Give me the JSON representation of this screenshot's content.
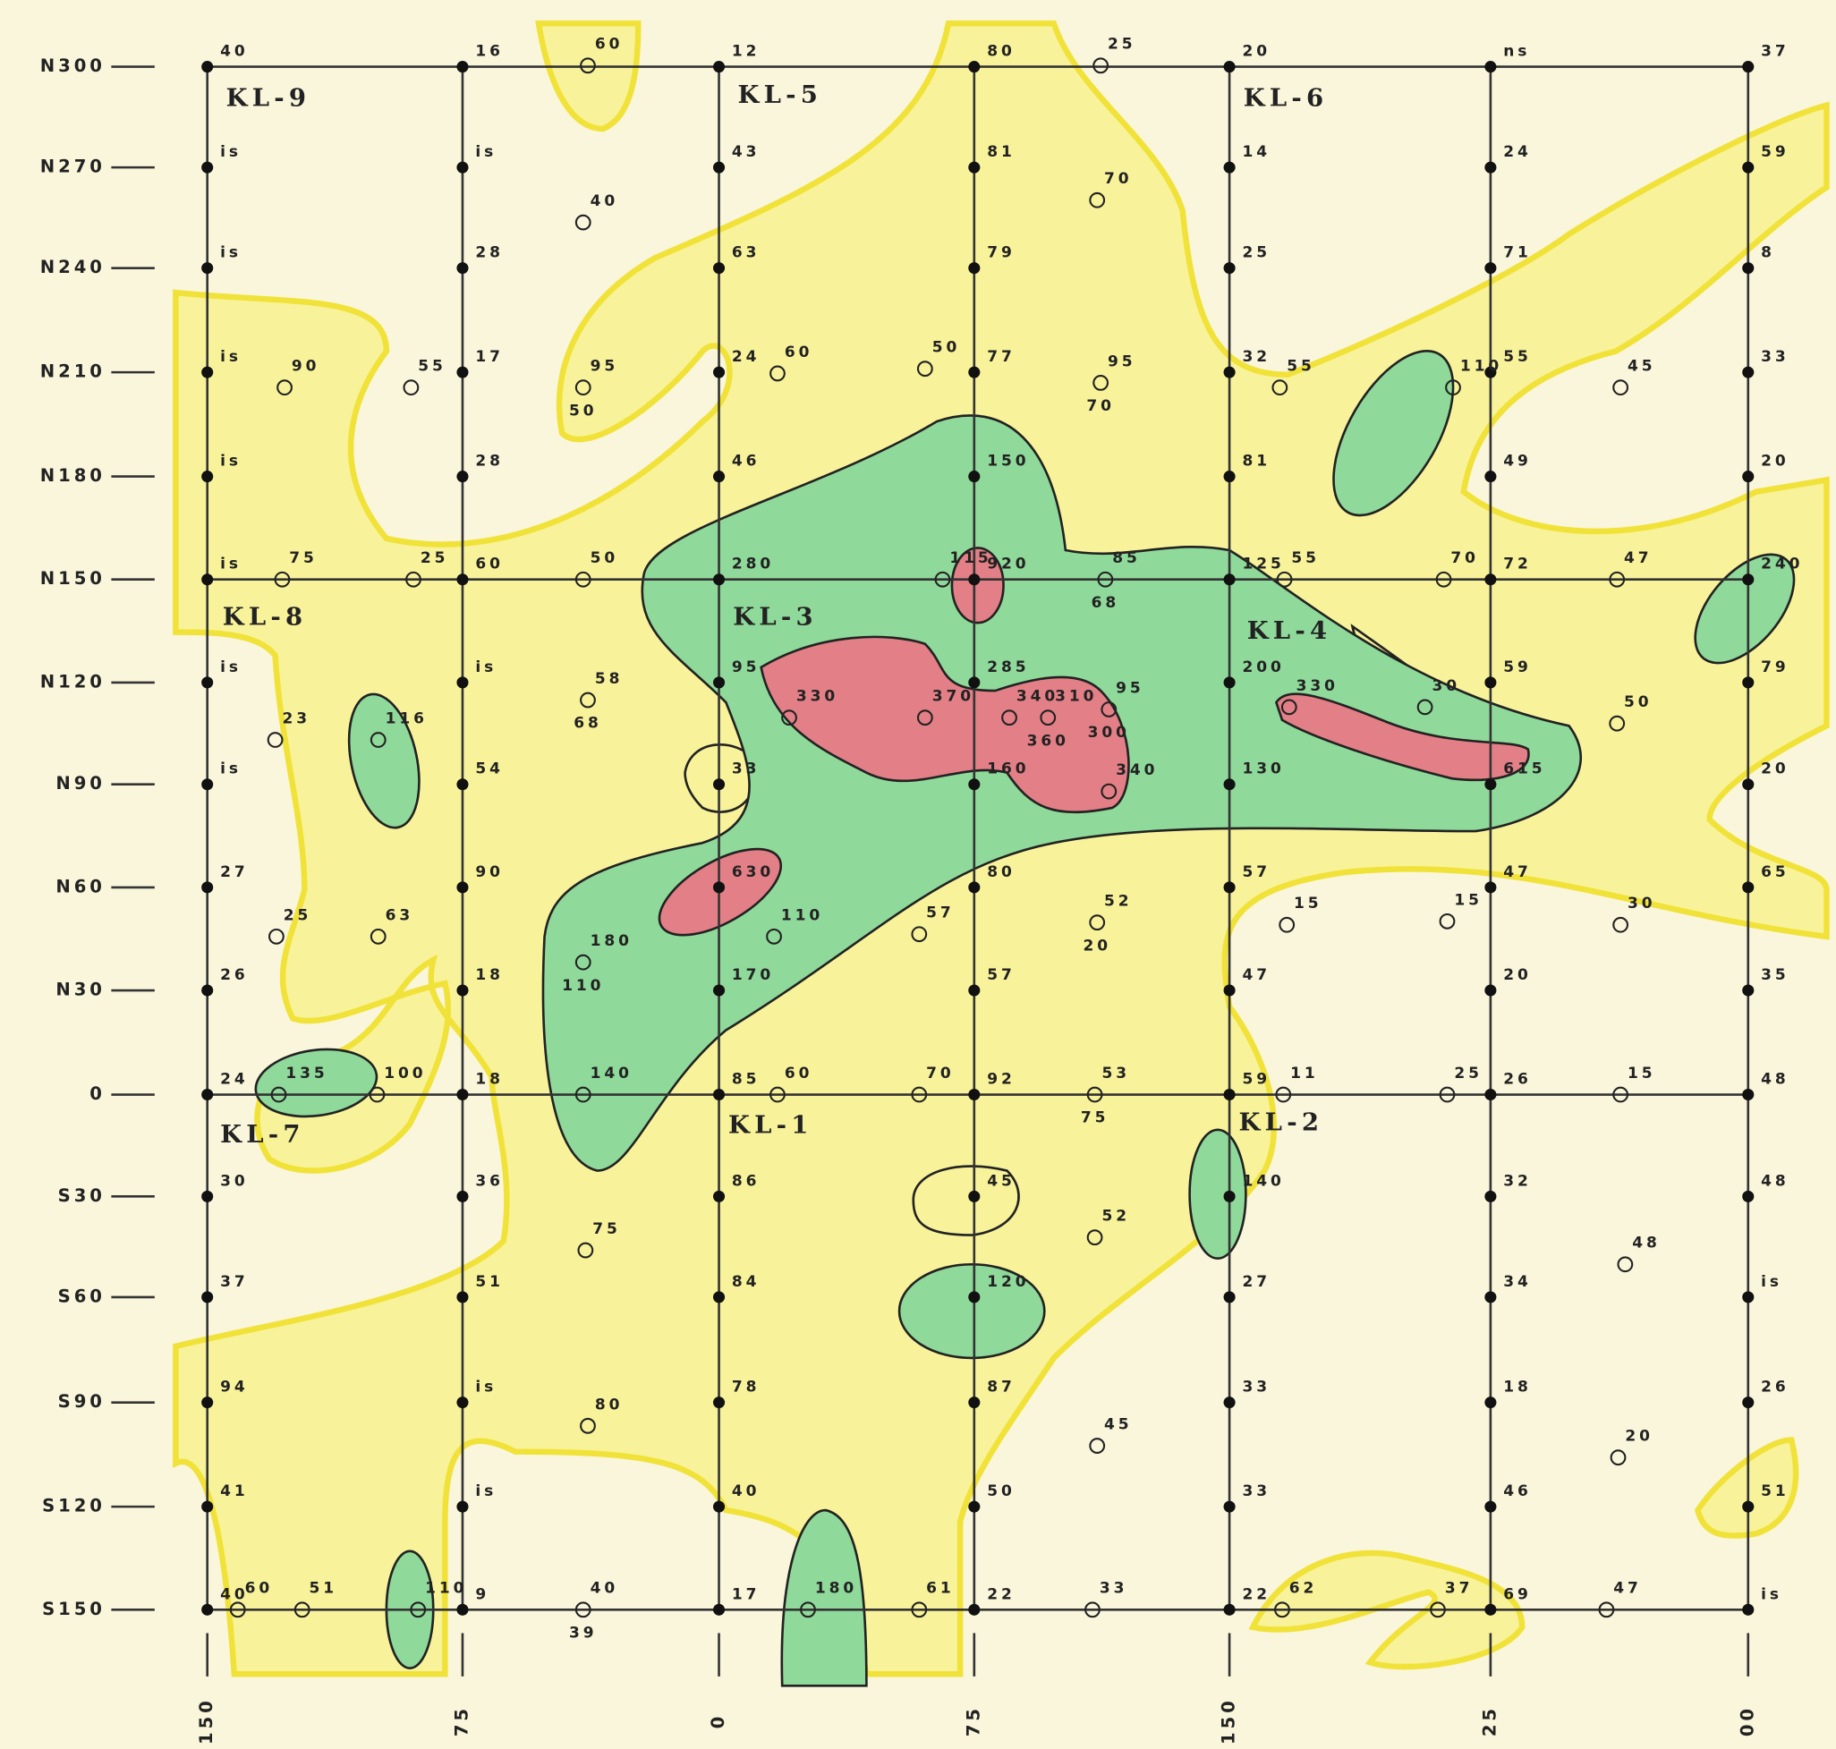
{
  "grid": {
    "rows": [
      {
        "label": "N300",
        "values": [
          40,
          16,
          12,
          80,
          20,
          "ns",
          37
        ]
      },
      {
        "label": "N270",
        "values": [
          "is",
          "is",
          43,
          81,
          14,
          24,
          59
        ]
      },
      {
        "label": "N240",
        "values": [
          "is",
          28,
          63,
          79,
          25,
          71,
          8
        ]
      },
      {
        "label": "N210",
        "values": [
          "is",
          17,
          24,
          77,
          32,
          55,
          33
        ]
      },
      {
        "label": "N180",
        "values": [
          "is",
          28,
          46,
          150,
          81,
          49,
          20
        ]
      },
      {
        "label": "N150",
        "values": [
          "is",
          60,
          280,
          920,
          125,
          72,
          240
        ]
      },
      {
        "label": "N120",
        "values": [
          "is",
          "is",
          95,
          285,
          200,
          59,
          79
        ]
      },
      {
        "label": "N90",
        "values": [
          "is",
          54,
          33,
          160,
          130,
          615,
          20
        ]
      },
      {
        "label": "N60",
        "values": [
          27,
          90,
          630,
          80,
          57,
          47,
          65
        ]
      },
      {
        "label": "N30",
        "values": [
          26,
          18,
          170,
          57,
          47,
          20,
          35
        ]
      },
      {
        "label": "0",
        "values": [
          24,
          18,
          85,
          92,
          59,
          26,
          48
        ]
      },
      {
        "label": "S30",
        "values": [
          30,
          36,
          86,
          45,
          140,
          32,
          48
        ]
      },
      {
        "label": "S60",
        "values": [
          37,
          51,
          84,
          120,
          27,
          34,
          "is"
        ]
      },
      {
        "label": "S90",
        "values": [
          94,
          "is",
          78,
          87,
          33,
          18,
          26
        ]
      },
      {
        "label": "S120",
        "values": [
          41,
          "is",
          40,
          50,
          33,
          46,
          51
        ]
      },
      {
        "label": "S150",
        "values": [
          40,
          9,
          17,
          22,
          22,
          69,
          "is"
        ]
      }
    ],
    "x_labels": [
      "150",
      "75",
      "0",
      "75",
      "150",
      "25",
      "00"
    ]
  },
  "areas": [
    "KL-9",
    "KL-5",
    "KL-6",
    "KL-8",
    "KL-3",
    "KL-4",
    "KL-7",
    "KL-1",
    "KL-2"
  ],
  "samples": [
    [
      60
    ],
    [
      25
    ],
    [
      40
    ],
    [
      70
    ],
    [
      90
    ],
    [
      55
    ],
    [
      95,
      50
    ],
    [
      60
    ],
    [
      50
    ],
    [
      95,
      70
    ],
    [
      55
    ],
    [
      110
    ],
    [
      45
    ],
    [
      75
    ],
    [
      25
    ],
    [
      50
    ],
    [
      115
    ],
    [
      85,
      68
    ],
    [
      55
    ],
    [
      70
    ],
    [
      47
    ],
    [
      58,
      68
    ],
    [
      330
    ],
    [
      370
    ],
    [
      340
    ],
    [
      310,
      360
    ],
    [
      95,
      300
    ],
    [
      330
    ],
    [
      30
    ],
    [
      50
    ],
    [
      23
    ],
    [
      116
    ],
    [
      340
    ],
    [
      25
    ],
    [
      63
    ],
    [
      180,
      110
    ],
    [
      110
    ],
    [
      57
    ],
    [
      52,
      20
    ],
    [
      15
    ],
    [
      15
    ],
    [
      30
    ],
    [
      135
    ],
    [
      100
    ],
    [
      140
    ],
    [
      60
    ],
    [
      70
    ],
    [
      53,
      75
    ],
    [
      11
    ],
    [
      25
    ],
    [
      15
    ],
    [
      75
    ],
    [
      52
    ],
    [
      48
    ],
    [
      80
    ],
    [
      45
    ],
    [
      20
    ],
    [
      60
    ],
    [
      51
    ],
    [
      110
    ],
    [
      40,
      39
    ],
    [
      180
    ],
    [
      61
    ],
    [
      33
    ],
    [
      62
    ],
    [
      37
    ],
    [
      47
    ]
  ]
}
